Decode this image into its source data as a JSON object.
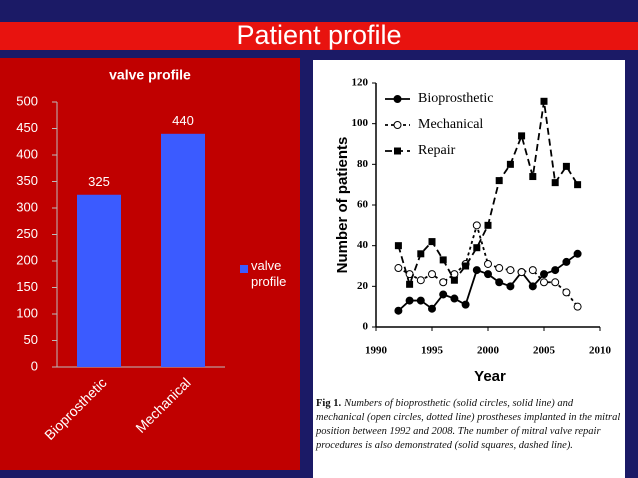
{
  "title": "Patient profile",
  "chart_data": [
    {
      "type": "bar",
      "title": "valve profile",
      "categories": [
        "Bioprosthetic",
        "Mechanical"
      ],
      "series": [
        {
          "name": "valve profile",
          "color": "#3b5bff",
          "values": [
            325,
            440
          ]
        }
      ],
      "ylim": [
        0,
        500
      ],
      "yticks": [
        0,
        50,
        100,
        150,
        200,
        250,
        300,
        350,
        400,
        450,
        500
      ],
      "data_labels": true,
      "legend": "right"
    },
    {
      "type": "line",
      "xlabel": "Year",
      "ylabel": "Number of patients",
      "x": [
        1992,
        1993,
        1994,
        1995,
        1996,
        1997,
        1998,
        1999,
        2000,
        2001,
        2002,
        2003,
        2004,
        2005,
        2006,
        2007,
        2008
      ],
      "series": [
        {
          "name": "Bioprosthetic",
          "color": "#000000",
          "marker": "filled-circle",
          "dash": "solid",
          "values": [
            8,
            13,
            13,
            9,
            16,
            14,
            11,
            28,
            26,
            22,
            20,
            27,
            20,
            26,
            28,
            32,
            36
          ]
        },
        {
          "name": "Mechanical",
          "color": "#000000",
          "marker": "open-circle",
          "dash": "dotted",
          "values": [
            29,
            26,
            23,
            26,
            22,
            26,
            31,
            50,
            31,
            29,
            28,
            27,
            28,
            22,
            22,
            17,
            10
          ]
        },
        {
          "name": "Repair",
          "color": "#000000",
          "marker": "filled-square",
          "dash": "dashed",
          "values": [
            40,
            21,
            36,
            42,
            33,
            23,
            30,
            39,
            50,
            72,
            80,
            94,
            74,
            111,
            71,
            79,
            70
          ]
        }
      ],
      "xlim": [
        1990,
        2010
      ],
      "xticks": [
        1990,
        1995,
        2000,
        2005,
        2010
      ],
      "ylim": [
        0,
        120
      ],
      "yticks": [
        0,
        20,
        40,
        60,
        80,
        100,
        120
      ],
      "legend": "upper-left",
      "caption": {
        "label": "Fig 1.",
        "text": "Numbers of bioprosthetic (solid circles, solid line) and mechanical (open circles, dotted line) prostheses implanted in the mitral position between 1992 and 2008. The number of mitral valve repair procedures is also demonstrated (solid squares, dashed line)."
      }
    }
  ]
}
